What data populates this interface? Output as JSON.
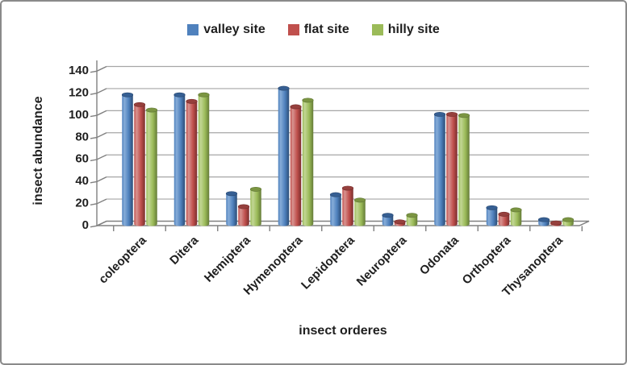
{
  "style": {
    "background": "#ffffff",
    "frame_border": "#8a8a8a",
    "grid": "#a6a6a6",
    "axis": "#808080",
    "text": "#1f1f1f"
  },
  "chart_data": {
    "type": "bar",
    "bar_style": "3d-cylinder",
    "title": "",
    "xlabel": "insect orderes",
    "ylabel": "insect abundance",
    "ylim": [
      0,
      140
    ],
    "ytick_step": 20,
    "yticks": [
      0,
      20,
      40,
      60,
      80,
      100,
      120,
      140
    ],
    "grid": true,
    "legend_position": "top-center",
    "categories": [
      "coleoptera",
      "Ditera",
      "Hemiptera",
      "Hymenoptera",
      "Lepidoptera",
      "Neuroptera",
      "Odonata",
      "Orthoptera",
      "Thysanoptera"
    ],
    "series": [
      {
        "name": "valley site",
        "color": "#4F81BD",
        "color_light": "#86acd8",
        "color_dark": "#2c4d77",
        "color_top": "#365f93",
        "values": [
          119,
          119,
          28,
          125,
          27,
          8,
          101,
          15,
          4
        ]
      },
      {
        "name": "flat site",
        "color": "#C0504D",
        "color_light": "#d79390",
        "color_dark": "#7b2f2d",
        "color_top": "#96403d",
        "values": [
          110,
          113,
          16,
          108,
          33,
          2,
          101,
          9,
          1
        ]
      },
      {
        "name": "hilly site",
        "color": "#9BBB59",
        "color_light": "#c2d694",
        "color_dark": "#647b37",
        "color_top": "#7b9542",
        "values": [
          105,
          119,
          32,
          114,
          22,
          8,
          100,
          13,
          4
        ]
      }
    ]
  }
}
